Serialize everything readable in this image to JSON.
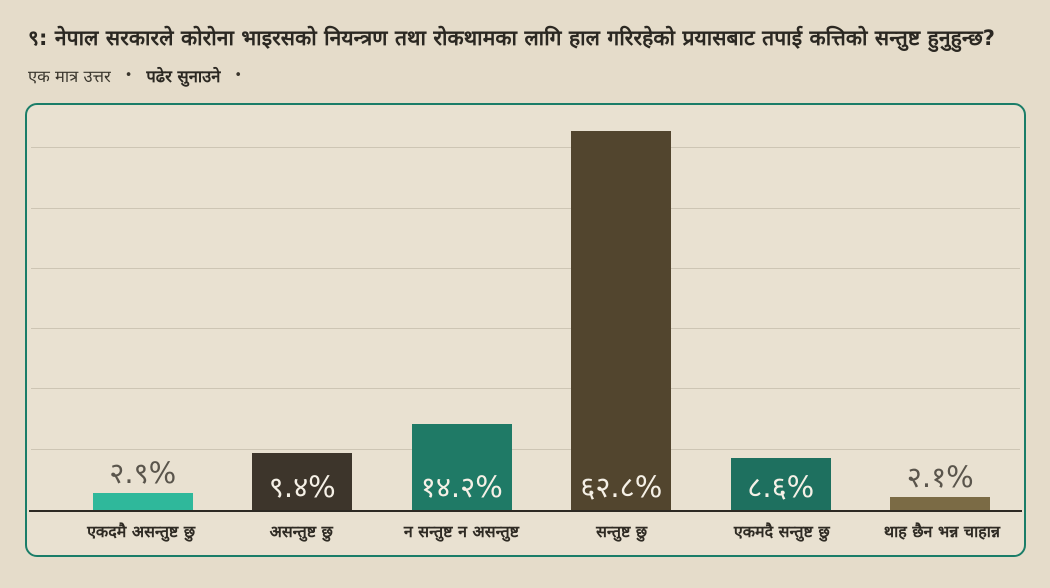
{
  "header": {
    "title": "९: नेपाल सरकारले कोरोना भाइरसको नियन्त्रण तथा रोकथामका लागि हाल गरिरहेको प्रयासबाट तपाई  कत्तिको सन्तुष्ट हुनुहुन्छ?",
    "meta_left": "एक मात्र उत्तर",
    "meta_bullet": "•",
    "meta_right": "पढेर सुनाउने"
  },
  "colors": {
    "page_bg": "#e5dcca",
    "panel_bg": "#e9e1d1",
    "panel_border": "#1a7d68",
    "gridline": "#cdc5b4",
    "baseline": "#2d2a24",
    "value_label_outside": "#5a554c",
    "value_label_inside": "#f5f0e6"
  },
  "chart_data": {
    "type": "bar",
    "title": "",
    "xlabel": "",
    "ylabel": "",
    "categories": [
      "एकदमै असन्तुष्ट छु",
      "असन्तुष्ट छु",
      "न सन्तुष्ट न असन्तुष्ट",
      "सन्तुष्ट छु",
      "एकमदै सन्तुष्ट छु",
      "थाह छैन भन्न चाहान्न"
    ],
    "values": [
      2.9,
      9.4,
      14.2,
      62.8,
      8.6,
      2.1
    ],
    "value_labels": [
      "२.९%",
      "९.४%",
      "१४.२%",
      "६२.८%",
      "८.६%",
      "२.१%"
    ],
    "bar_colors": [
      "#2fb89b",
      "#3d352b",
      "#1f7a66",
      "#52452e",
      "#1e705f",
      "#7b6b45"
    ],
    "value_label_placement": [
      "above",
      "inside",
      "inside",
      "inside",
      "inside",
      "above"
    ],
    "ylim": [
      0,
      67.5
    ],
    "grid": "horizontal",
    "grid_interval": 10,
    "gridlines_visible": 6,
    "legend": "none",
    "axis_tick_labels": "none"
  }
}
